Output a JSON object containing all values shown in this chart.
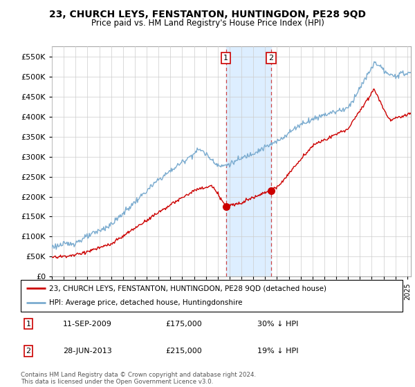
{
  "title": "23, CHURCH LEYS, FENSTANTON, HUNTINGDON, PE28 9QD",
  "subtitle": "Price paid vs. HM Land Registry's House Price Index (HPI)",
  "ylim": [
    0,
    575000
  ],
  "yticks": [
    0,
    50000,
    100000,
    150000,
    200000,
    250000,
    300000,
    350000,
    400000,
    450000,
    500000,
    550000
  ],
  "xmin": 1995.0,
  "xmax": 2025.3,
  "red_line_color": "#cc0000",
  "blue_line_color": "#7aabcf",
  "highlight_color": "#ddeeff",
  "sale1_x": 2009.69,
  "sale1_y": 175000,
  "sale1_label": "1",
  "sale2_x": 2013.49,
  "sale2_y": 215000,
  "sale2_label": "2",
  "legend_line1": "23, CHURCH LEYS, FENSTANTON, HUNTINGDON, PE28 9QD (detached house)",
  "legend_line2": "HPI: Average price, detached house, Huntingdonshire",
  "table_row1": [
    "1",
    "11-SEP-2009",
    "£175,000",
    "30% ↓ HPI"
  ],
  "table_row2": [
    "2",
    "28-JUN-2013",
    "£215,000",
    "19% ↓ HPI"
  ],
  "footer": "Contains HM Land Registry data © Crown copyright and database right 2024.\nThis data is licensed under the Open Government Licence v3.0."
}
